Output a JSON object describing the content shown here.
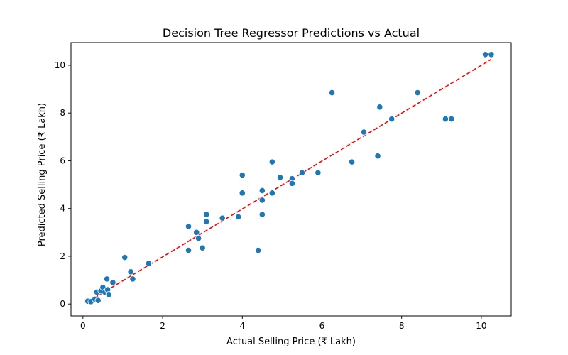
{
  "chart_data": {
    "type": "scatter",
    "title": "Decision Tree Regressor Predictions vs Actual",
    "xlabel": "Actual Selling Price (₹ Lakh)",
    "ylabel": "Predicted Selling Price (₹ Lakh)",
    "xlim": [
      -0.3,
      10.75
    ],
    "ylim": [
      -0.5,
      10.95
    ],
    "xticks": [
      0,
      2,
      4,
      6,
      8,
      10
    ],
    "yticks": [
      0,
      2,
      4,
      6,
      8,
      10
    ],
    "grid": false,
    "point_color": "#1f77b4",
    "reference_line": {
      "style": "dashed",
      "color": "#ff0000",
      "x": [
        0.15,
        10.25
      ],
      "y": [
        0.12,
        10.25
      ]
    },
    "points": [
      {
        "x": 0.12,
        "y": 0.12
      },
      {
        "x": 0.2,
        "y": 0.1
      },
      {
        "x": 0.3,
        "y": 0.2
      },
      {
        "x": 0.35,
        "y": 0.5
      },
      {
        "x": 0.38,
        "y": 0.15
      },
      {
        "x": 0.45,
        "y": 0.55
      },
      {
        "x": 0.5,
        "y": 0.7
      },
      {
        "x": 0.55,
        "y": 0.5
      },
      {
        "x": 0.6,
        "y": 1.05
      },
      {
        "x": 0.62,
        "y": 0.6
      },
      {
        "x": 0.65,
        "y": 0.4
      },
      {
        "x": 0.75,
        "y": 0.9
      },
      {
        "x": 1.05,
        "y": 1.95
      },
      {
        "x": 1.2,
        "y": 1.35
      },
      {
        "x": 1.25,
        "y": 1.05
      },
      {
        "x": 1.65,
        "y": 1.7
      },
      {
        "x": 2.65,
        "y": 2.25
      },
      {
        "x": 2.65,
        "y": 3.25
      },
      {
        "x": 2.85,
        "y": 3.0
      },
      {
        "x": 2.9,
        "y": 2.75
      },
      {
        "x": 3.0,
        "y": 2.35
      },
      {
        "x": 3.1,
        "y": 3.75
      },
      {
        "x": 3.1,
        "y": 3.45
      },
      {
        "x": 3.5,
        "y": 3.6
      },
      {
        "x": 3.9,
        "y": 3.65
      },
      {
        "x": 4.0,
        "y": 5.4
      },
      {
        "x": 4.0,
        "y": 4.65
      },
      {
        "x": 4.4,
        "y": 2.25
      },
      {
        "x": 4.5,
        "y": 4.75
      },
      {
        "x": 4.5,
        "y": 4.35
      },
      {
        "x": 4.5,
        "y": 3.75
      },
      {
        "x": 4.75,
        "y": 5.95
      },
      {
        "x": 4.75,
        "y": 4.65
      },
      {
        "x": 4.95,
        "y": 5.3
      },
      {
        "x": 5.25,
        "y": 5.25
      },
      {
        "x": 5.25,
        "y": 5.05
      },
      {
        "x": 5.5,
        "y": 5.5
      },
      {
        "x": 5.9,
        "y": 5.5
      },
      {
        "x": 6.25,
        "y": 8.85
      },
      {
        "x": 6.75,
        "y": 5.95
      },
      {
        "x": 7.05,
        "y": 7.2
      },
      {
        "x": 7.4,
        "y": 6.2
      },
      {
        "x": 7.45,
        "y": 8.25
      },
      {
        "x": 7.75,
        "y": 7.75
      },
      {
        "x": 8.4,
        "y": 8.85
      },
      {
        "x": 9.1,
        "y": 7.75
      },
      {
        "x": 9.25,
        "y": 7.75
      },
      {
        "x": 10.1,
        "y": 10.45
      },
      {
        "x": 10.25,
        "y": 10.45
      }
    ]
  }
}
